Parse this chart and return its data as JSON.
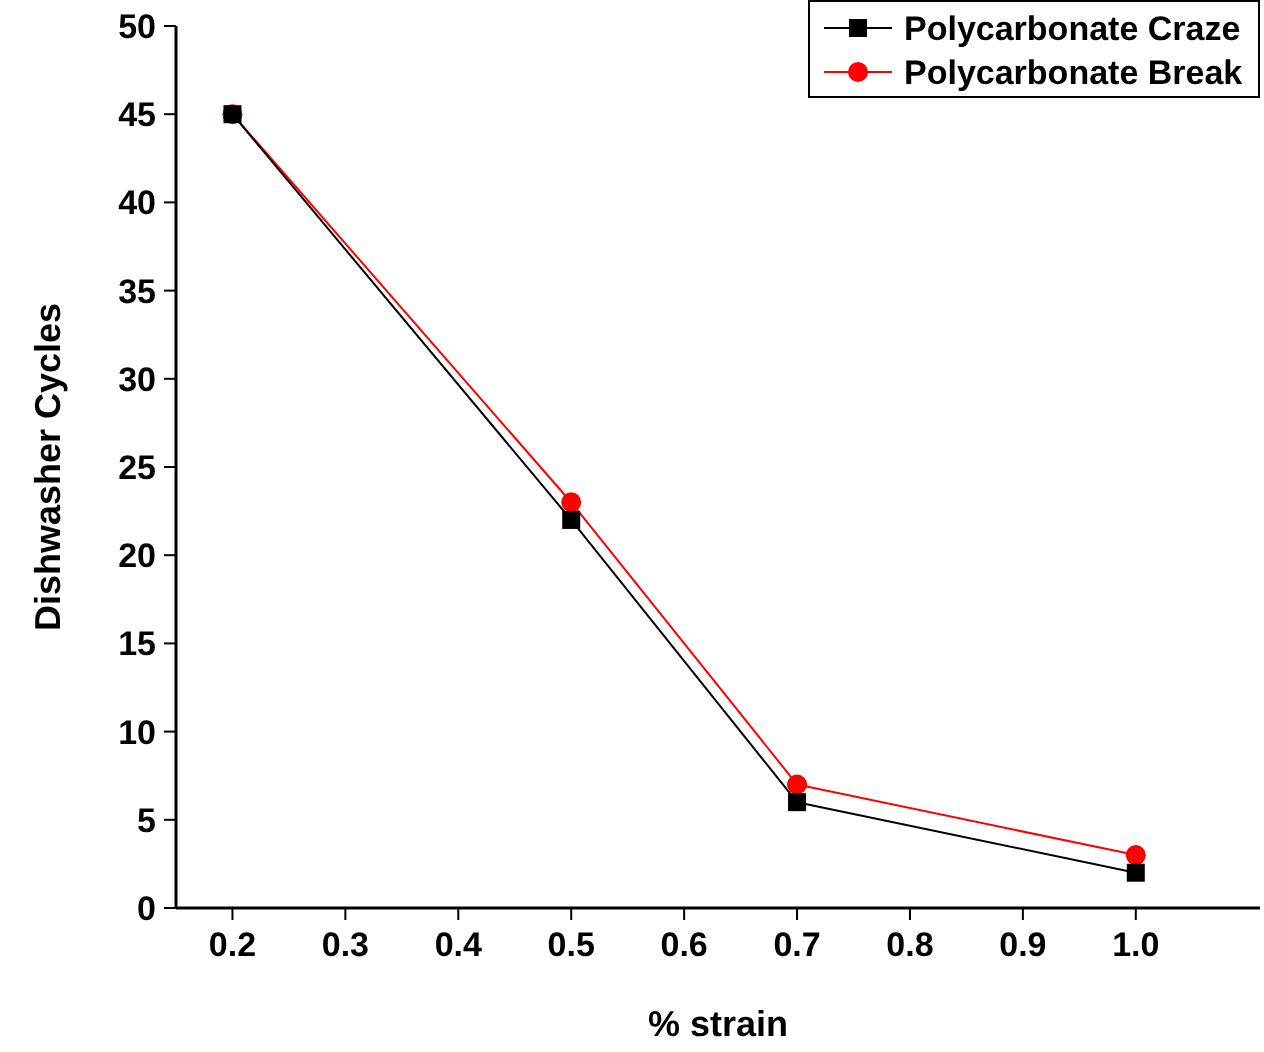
{
  "chart_data": {
    "type": "line",
    "xlabel": "% strain",
    "ylabel": "Dishwasher Cycles",
    "x": [
      0.2,
      0.5,
      0.7,
      1.0
    ],
    "series": [
      {
        "name": "Polycarbonate Craze",
        "color": "#000000",
        "marker": "square",
        "values": [
          45,
          22,
          6,
          2
        ]
      },
      {
        "name": "Polycarbonate Break",
        "color": "#ff0000",
        "marker": "circle",
        "values": [
          45,
          23,
          7,
          3
        ]
      }
    ],
    "xlim": [
      0.15,
      1.11
    ],
    "xticks": [
      {
        "value": 0.2,
        "label": "0.2"
      },
      {
        "value": 0.3,
        "label": "0.3"
      },
      {
        "value": 0.4,
        "label": "0.4"
      },
      {
        "value": 0.5,
        "label": "0.5"
      },
      {
        "value": 0.6,
        "label": "0.6"
      },
      {
        "value": 0.7,
        "label": "0.7"
      },
      {
        "value": 0.8,
        "label": "0.8"
      },
      {
        "value": 0.9,
        "label": "0.9"
      },
      {
        "value": 1.0,
        "label": "1.0"
      }
    ],
    "ylim": [
      0,
      50
    ],
    "yticks": [
      0,
      5,
      10,
      15,
      20,
      25,
      30,
      35,
      40,
      45,
      50
    ],
    "grid": false,
    "legend": "top right",
    "line_style": "solid"
  }
}
